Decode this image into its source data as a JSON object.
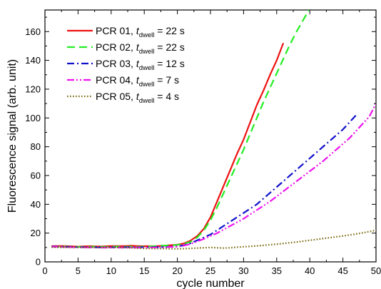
{
  "chart_data": {
    "type": "line",
    "xlabel": "cycle number",
    "ylabel": "Fluorescence signal (arb. unit)",
    "xlim": [
      0,
      50
    ],
    "ylim": [
      0,
      175
    ],
    "xticks": [
      0,
      5,
      10,
      15,
      20,
      25,
      30,
      35,
      40,
      45,
      50
    ],
    "yticks": [
      0,
      20,
      40,
      60,
      80,
      100,
      120,
      140,
      160
    ],
    "grid": false,
    "legend_position": "top-left",
    "series": [
      {
        "name": "PCR 01, t_dwell = 22 s",
        "legend": {
          "prefix": "PCR 01, ",
          "var": "t",
          "sub": "dwell",
          "suffix": " = 22 s"
        },
        "color": "#ee1111",
        "dash": "solid",
        "x": [
          1,
          2,
          3,
          4,
          5,
          6,
          7,
          8,
          9,
          10,
          11,
          12,
          13,
          14,
          15,
          16,
          17,
          18,
          19,
          20,
          21,
          22,
          23,
          24,
          25,
          26,
          27,
          28,
          29,
          30,
          31,
          32,
          33,
          34,
          35,
          36
        ],
        "y": [
          11,
          11,
          11,
          10.8,
          10.6,
          10.8,
          10.9,
          10.7,
          10.8,
          11,
          11,
          11,
          11.2,
          11,
          10.9,
          10.9,
          11,
          11.3,
          11.6,
          12,
          12.8,
          14.8,
          18,
          23,
          31,
          42,
          53,
          64,
          75,
          85,
          97,
          109,
          119,
          130,
          140,
          152
        ]
      },
      {
        "name": "PCR 02, t_dwell = 22 s",
        "legend": {
          "prefix": "PCR 02, ",
          "var": "t",
          "sub": "dwell",
          "suffix": " = 22 s"
        },
        "color": "#22ee22",
        "dash": "dashed",
        "x": [
          1,
          2,
          3,
          4,
          5,
          6,
          7,
          8,
          9,
          10,
          11,
          12,
          13,
          14,
          15,
          16,
          17,
          18,
          19,
          20,
          21,
          22,
          23,
          24,
          25,
          26,
          27,
          28,
          29,
          30,
          31,
          32,
          33,
          34,
          35,
          36,
          37,
          38,
          39,
          40
        ],
        "y": [
          10.5,
          10.5,
          10.6,
          10.4,
          10.5,
          10.4,
          10.5,
          10.6,
          10.4,
          10.5,
          10.6,
          10.5,
          10.6,
          10.5,
          10.6,
          10.8,
          11,
          11.3,
          11.5,
          11.8,
          12.5,
          14,
          17,
          22,
          29,
          38,
          48,
          58,
          68,
          78,
          89,
          100,
          111,
          121,
          131,
          141,
          151,
          160,
          168,
          176
        ]
      },
      {
        "name": "PCR 03, t_dwell = 12 s",
        "legend": {
          "prefix": "PCR 03, ",
          "var": "t",
          "sub": "dwell",
          "suffix": " = 12 s"
        },
        "color": "#1111cc",
        "dash": "dashdot",
        "x": [
          1,
          2,
          3,
          4,
          5,
          6,
          7,
          8,
          9,
          10,
          11,
          12,
          13,
          14,
          15,
          16,
          17,
          18,
          19,
          20,
          21,
          22,
          23,
          24,
          25,
          26,
          27,
          28,
          29,
          30,
          31,
          32,
          33,
          34,
          35,
          36,
          37,
          38,
          39,
          40,
          41,
          42,
          43,
          44,
          45,
          46,
          47
        ],
        "y": [
          10.8,
          10.6,
          10.5,
          10.4,
          10.3,
          10.2,
          10.2,
          10.1,
          10.1,
          10.1,
          10.1,
          10.2,
          10.2,
          10.2,
          10.2,
          10.2,
          10.3,
          10.3,
          10.5,
          10.8,
          11.5,
          13,
          15,
          17,
          19,
          22,
          25,
          28,
          31,
          34,
          37,
          40,
          44,
          48,
          52,
          56,
          60,
          64,
          68,
          72,
          76,
          80,
          84,
          88,
          92,
          97,
          102
        ]
      },
      {
        "name": "PCR 04, t_dwell = 7 s",
        "legend": {
          "prefix": "PCR 04, ",
          "var": "t",
          "sub": "dwell",
          "suffix": " = 7 s"
        },
        "color": "#ee11ee",
        "dash": "dashdotdot",
        "x": [
          1,
          2,
          3,
          4,
          5,
          6,
          7,
          8,
          9,
          10,
          11,
          12,
          13,
          14,
          15,
          16,
          17,
          18,
          19,
          20,
          21,
          22,
          23,
          24,
          25,
          26,
          27,
          28,
          29,
          30,
          31,
          32,
          33,
          34,
          35,
          36,
          37,
          38,
          39,
          40,
          41,
          42,
          43,
          44,
          45,
          46,
          47,
          48,
          49,
          50
        ],
        "y": [
          10.6,
          10.4,
          10.3,
          10.2,
          10.1,
          10,
          10,
          9.9,
          9.9,
          9.9,
          9.9,
          9.9,
          9.9,
          9.9,
          9.9,
          10,
          10,
          10.2,
          10.4,
          10.6,
          11.3,
          12.5,
          14.2,
          16,
          18,
          20,
          22.5,
          25,
          27.5,
          30,
          33,
          36,
          39,
          42,
          45.5,
          49,
          52.5,
          56,
          59.5,
          63,
          66.5,
          70,
          74,
          78,
          82,
          86,
          91,
          96,
          101,
          110
        ]
      },
      {
        "name": "PCR 05, t_dwell = 4 s",
        "legend": {
          "prefix": "PCR 05, ",
          "var": "t",
          "sub": "dwell",
          "suffix": " = 4 s"
        },
        "color": "#7a6a10",
        "dash": "dotted",
        "x": [
          1,
          2,
          3,
          4,
          5,
          6,
          7,
          8,
          9,
          10,
          11,
          12,
          13,
          14,
          15,
          16,
          17,
          18,
          19,
          20,
          21,
          22,
          23,
          24,
          25,
          26,
          27,
          28,
          29,
          30,
          31,
          32,
          33,
          34,
          35,
          36,
          37,
          38,
          39,
          40,
          41,
          42,
          43,
          44,
          45,
          46,
          47,
          48,
          49,
          50
        ],
        "y": [
          10.2,
          10.1,
          10.1,
          10.1,
          10,
          10,
          10,
          10,
          10,
          10,
          10,
          9.9,
          9.8,
          9.6,
          9.4,
          9.3,
          9.2,
          9.2,
          9.1,
          9.1,
          9.2,
          9.4,
          9.6,
          9.8,
          10,
          9.8,
          9.6,
          9.8,
          10.2,
          10.5,
          10.8,
          11.1,
          11.5,
          11.9,
          12.3,
          12.8,
          13.3,
          13.8,
          14.4,
          15,
          15.6,
          16.2,
          16.8,
          17.4,
          18,
          18.7,
          19.4,
          20.2,
          21,
          22
        ]
      }
    ]
  }
}
